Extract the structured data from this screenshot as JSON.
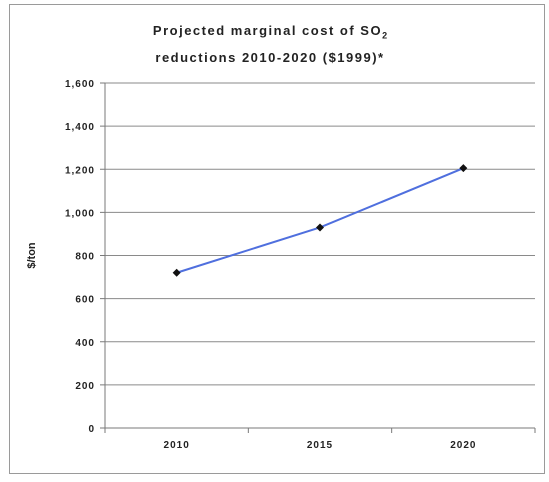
{
  "chart_data": {
    "type": "line",
    "title_main": "Projected marginal cost of SO",
    "title_sub": "2",
    "title_line2": "reductions 2010-2020 ($1999)*",
    "xlabel": "",
    "ylabel": "$/ton",
    "categories": [
      "2010",
      "2015",
      "2020"
    ],
    "series": [
      {
        "values": [
          720,
          930,
          1205
        ]
      }
    ],
    "ylim": [
      0,
      1600
    ],
    "yticks": [
      0,
      200,
      400,
      600,
      800,
      1000,
      1200,
      1400,
      1600
    ],
    "ytick_labels": [
      "0",
      "200",
      "400",
      "600",
      "800",
      "1,000",
      "1,200",
      "1,400",
      "1,600"
    ],
    "grid": true,
    "colors": {
      "line": "#4f6fde",
      "marker": "#111111",
      "grid": "#8a8a8a",
      "axis": "#7a7a7a"
    }
  }
}
